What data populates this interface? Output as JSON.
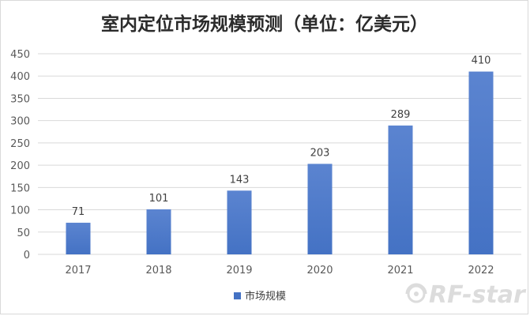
{
  "chart_data": {
    "type": "bar",
    "title": "室内定位市场规模预测（单位：亿美元）",
    "categories": [
      "2017",
      "2018",
      "2019",
      "2020",
      "2021",
      "2022"
    ],
    "series": [
      {
        "name": "市场规模",
        "values": [
          71,
          101,
          143,
          203,
          289,
          410
        ],
        "color": "#4472c4"
      }
    ],
    "data_labels": [
      "71",
      "101",
      "143",
      "203",
      "289",
      "410"
    ],
    "ylim": [
      0,
      450
    ],
    "yticks": [
      "0",
      "50",
      "100",
      "150",
      "200",
      "250",
      "300",
      "350",
      "400",
      "450"
    ],
    "grid": true,
    "legend": "bottom"
  },
  "watermark": {
    "text": "RF-star"
  }
}
